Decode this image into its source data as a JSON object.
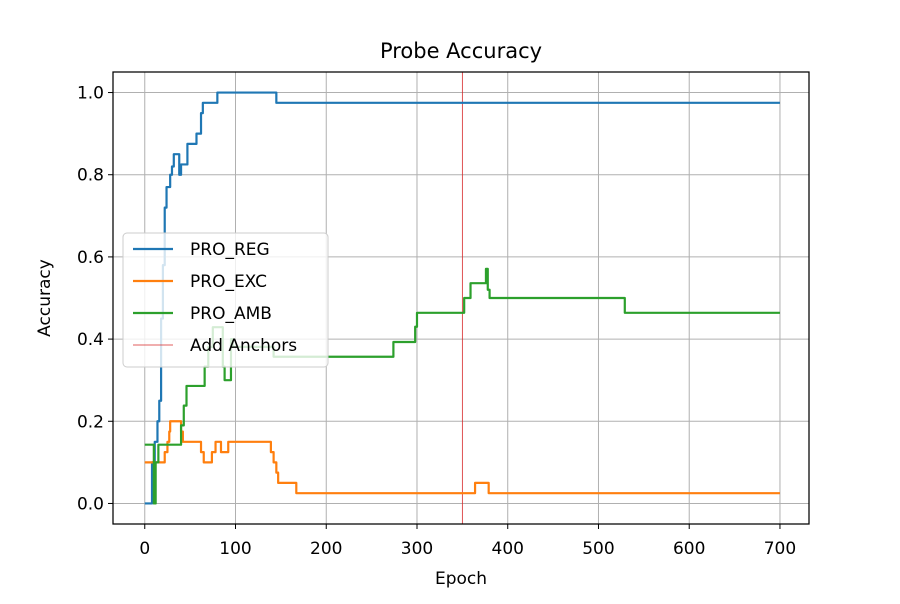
{
  "chart_data": {
    "type": "line",
    "title": "Probe Accuracy",
    "xlabel": "Epoch",
    "ylabel": "Accuracy",
    "xlim": [
      -35,
      732
    ],
    "ylim": [
      -0.05,
      1.05
    ],
    "xticks": [
      0,
      100,
      200,
      300,
      400,
      500,
      600,
      700
    ],
    "yticks": [
      0.0,
      0.2,
      0.4,
      0.6,
      0.8,
      1.0
    ],
    "ytick_labels": [
      "0.0",
      "0.2",
      "0.4",
      "0.6",
      "0.8",
      "1.0"
    ],
    "grid": true,
    "legend_position": "center-left",
    "series": [
      {
        "name": "PRO_REG",
        "color": "#1f77b4",
        "step": true,
        "points": [
          [
            0,
            0
          ],
          [
            5,
            0
          ],
          [
            8,
            0.1
          ],
          [
            11,
            0.15
          ],
          [
            14,
            0.2
          ],
          [
            16,
            0.25
          ],
          [
            18,
            0.45
          ],
          [
            20,
            0.58
          ],
          [
            22,
            0.72
          ],
          [
            24,
            0.77
          ],
          [
            28,
            0.8
          ],
          [
            30,
            0.82
          ],
          [
            32,
            0.85
          ],
          [
            36,
            0.85
          ],
          [
            38,
            0.8
          ],
          [
            40,
            0.825
          ],
          [
            45,
            0.825
          ],
          [
            47,
            0.875
          ],
          [
            55,
            0.875
          ],
          [
            57,
            0.9
          ],
          [
            60,
            0.9
          ],
          [
            62,
            0.95
          ],
          [
            64,
            0.975
          ],
          [
            78,
            0.975
          ],
          [
            80,
            1.0
          ],
          [
            143,
            1.0
          ],
          [
            145,
            0.975
          ],
          [
            700,
            0.975
          ]
        ]
      },
      {
        "name": "PRO_EXC",
        "color": "#ff7f0e",
        "step": true,
        "points": [
          [
            0,
            0.1
          ],
          [
            20,
            0.1
          ],
          [
            22,
            0.125
          ],
          [
            25,
            0.15
          ],
          [
            27,
            0.175
          ],
          [
            28,
            0.2
          ],
          [
            38,
            0.2
          ],
          [
            40,
            0.175
          ],
          [
            42,
            0.15
          ],
          [
            60,
            0.15
          ],
          [
            62,
            0.125
          ],
          [
            65,
            0.1
          ],
          [
            72,
            0.1
          ],
          [
            74,
            0.125
          ],
          [
            78,
            0.15
          ],
          [
            82,
            0.15
          ],
          [
            84,
            0.125
          ],
          [
            88,
            0.125
          ],
          [
            92,
            0.15
          ],
          [
            137,
            0.15
          ],
          [
            139,
            0.125
          ],
          [
            142,
            0.1
          ],
          [
            145,
            0.075
          ],
          [
            147,
            0.05
          ],
          [
            165,
            0.05
          ],
          [
            167,
            0.025
          ],
          [
            362,
            0.025
          ],
          [
            364,
            0.05
          ],
          [
            377,
            0.05
          ],
          [
            379,
            0.025
          ],
          [
            700,
            0.025
          ]
        ]
      },
      {
        "name": "PRO_AMB",
        "color": "#2ca02c",
        "step": true,
        "points": [
          [
            0,
            0.143
          ],
          [
            8,
            0.143
          ],
          [
            10,
            0
          ],
          [
            12,
            0.1
          ],
          [
            15,
            0.143
          ],
          [
            38,
            0.143
          ],
          [
            40,
            0.19
          ],
          [
            43,
            0.238
          ],
          [
            46,
            0.286
          ],
          [
            64,
            0.286
          ],
          [
            66,
            0.333
          ],
          [
            70,
            0.381
          ],
          [
            75,
            0.429
          ],
          [
            84,
            0.429
          ],
          [
            86,
            0.333
          ],
          [
            88,
            0.3
          ],
          [
            95,
            0.4
          ],
          [
            97,
            0.381
          ],
          [
            140,
            0.381
          ],
          [
            142,
            0.357
          ],
          [
            272,
            0.357
          ],
          [
            274,
            0.393
          ],
          [
            295,
            0.393
          ],
          [
            298,
            0.43
          ],
          [
            300,
            0.464
          ],
          [
            350,
            0.464
          ],
          [
            352,
            0.5
          ],
          [
            357,
            0.5
          ],
          [
            359,
            0.536
          ],
          [
            374,
            0.536
          ],
          [
            376,
            0.571
          ],
          [
            378,
            0.52
          ],
          [
            380,
            0.5
          ],
          [
            527,
            0.5
          ],
          [
            529,
            0.464
          ],
          [
            700,
            0.464
          ]
        ]
      }
    ],
    "annotations": [
      {
        "label": "Add Anchors",
        "type": "vline",
        "x": 350,
        "color": "#d62728"
      }
    ]
  }
}
